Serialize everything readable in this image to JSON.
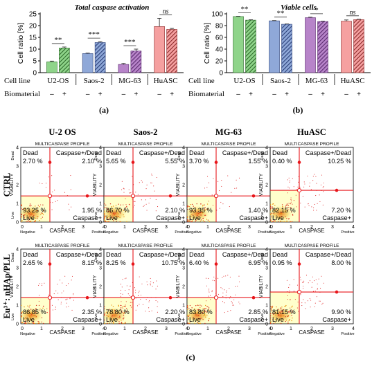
{
  "colors": {
    "u2os": "#8fd48a",
    "saos2": "#8fa8d8",
    "mg63": "#b784c9",
    "huasc": "#f5a0a0",
    "flow_red": "#e8161b",
    "flow_zone": "#ffffcc"
  },
  "panel_labels": {
    "a": "(a)",
    "b": "(b)",
    "c": "(c)"
  },
  "row_labels": {
    "cell_line": "Cell line",
    "biomaterial": "Biomaterial",
    "minus": "–",
    "plus": "+"
  },
  "chart_data": [
    {
      "type": "bar",
      "panel": "(a)",
      "title": "Total caspase activation",
      "ylabel": "Cell ratio [%]",
      "ylim": [
        0,
        25
      ],
      "yticks": [
        "0",
        "5",
        "10",
        "15",
        "20",
        "25"
      ],
      "categories": [
        "U2-OS",
        "Saos-2",
        "MG-63",
        "HuASC"
      ],
      "series": [
        {
          "biomaterial": "–",
          "values": [
            4.6,
            8.1,
            3.5,
            19.6
          ],
          "errors": [
            0.3,
            0.2,
            0.4,
            3.5
          ]
        },
        {
          "biomaterial": "+",
          "values": [
            10.5,
            12.8,
            9.2,
            18.4
          ],
          "errors": [
            0.4,
            0.4,
            0.8,
            0.4
          ]
        }
      ],
      "significance": [
        "**",
        "***",
        "***",
        "ns"
      ]
    },
    {
      "type": "bar",
      "panel": "(b)",
      "title": "Viable cells",
      "ylabel": "Cell ratio [%]",
      "ylim": [
        0,
        100
      ],
      "yticks": [
        "0",
        "20",
        "40",
        "60",
        "80",
        "100"
      ],
      "categories": [
        "U2-OS",
        "Saos-2",
        "MG-63",
        "HuASC"
      ],
      "series": [
        {
          "biomaterial": "–",
          "values": [
            95.4,
            88.1,
            93.5,
            87.6
          ],
          "errors": [
            0.5,
            0.5,
            0.8,
            2.0
          ]
        },
        {
          "biomaterial": "+",
          "values": [
            89.3,
            82.3,
            87.0,
            90.2
          ],
          "errors": [
            0.6,
            0.5,
            0.6,
            0.6
          ]
        }
      ],
      "significance": [
        "**",
        "**",
        "*",
        "ns"
      ]
    },
    {
      "type": "scatter",
      "panel": "(c)",
      "plot_title": "MULTICASPASE PROFILE",
      "xlabel": "CASPASE",
      "ylabel": "VIABILITY",
      "xticks": [
        "0",
        "1",
        "2",
        "3",
        "4"
      ],
      "yticks": [
        "0",
        "1",
        "2",
        "3",
        "4"
      ],
      "x_axis_ends": [
        "Negative",
        "Positive"
      ],
      "y_axis_ends": [
        "Live",
        "Dead"
      ],
      "quadrant_names": {
        "dead": "Dead",
        "caspase_dead": "Caspase+/Dead",
        "live": "Live",
        "caspase": "Caspase+"
      },
      "columns": [
        "U-2 OS",
        "Saos-2",
        "MG-63",
        "HuASC"
      ],
      "rows": [
        "CTRL",
        "Eu³⁺: nHAp/PLL"
      ],
      "gates": [
        [
          {
            "x": 1.4,
            "y": 1.4
          },
          {
            "x": 1.4,
            "y": 1.4
          },
          {
            "x": 1.4,
            "y": 1.4
          },
          {
            "x": 1.4,
            "y": 1.7
          }
        ],
        [
          {
            "x": 1.4,
            "y": 1.4
          },
          {
            "x": 1.4,
            "y": 1.4
          },
          {
            "x": 1.4,
            "y": 1.4
          },
          {
            "x": 1.4,
            "y": 1.7
          }
        ]
      ],
      "quadrants": [
        [
          {
            "dead": "2.70 %",
            "caspase_dead": "2.10 %",
            "live": "93.25 %",
            "caspase": "1.95 %"
          },
          {
            "dead": "5.65 %",
            "caspase_dead": "5.55 %",
            "live": "86.70 %",
            "caspase": "2.10 %"
          },
          {
            "dead": "3.70 %",
            "caspase_dead": "1.55 %",
            "live": "93.35 %",
            "caspase": "1.40 %"
          },
          {
            "dead": "0.40 %",
            "caspase_dead": "10.25 %",
            "live": "82.15 %",
            "caspase": "7.20 %"
          }
        ],
        [
          {
            "dead": "2.65 %",
            "caspase_dead": "8.15 %",
            "live": "86.85 %",
            "caspase": "2.35 %"
          },
          {
            "dead": "8.25 %",
            "caspase_dead": "10.75 %",
            "live": "78.80 %",
            "caspase": "2.20 %"
          },
          {
            "dead": "6.40 %",
            "caspase_dead": "6.95 %",
            "live": "83.80 %",
            "caspase": "2.85 %"
          },
          {
            "dead": "0.95 %",
            "caspase_dead": "8.00 %",
            "live": "81.15 %",
            "caspase": "9.90 %"
          }
        ]
      ]
    }
  ]
}
